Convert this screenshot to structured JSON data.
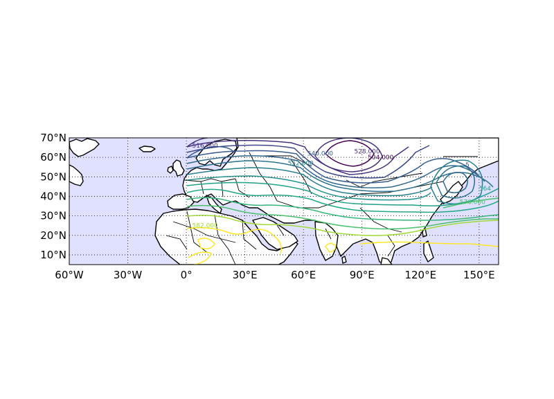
{
  "map": {
    "projection": "cylindrical",
    "lon_range": [
      -60,
      160
    ],
    "lat_range": [
      5,
      70
    ],
    "ocean_color": "#e0e0ff",
    "land_color": "#ffffff",
    "coastline_color": "#000000",
    "graticule": "dotted",
    "lat_ticks": [
      {
        "value": 10,
        "label": "10°N"
      },
      {
        "value": 20,
        "label": "20°N"
      },
      {
        "value": 30,
        "label": "30°N"
      },
      {
        "value": 40,
        "label": "40°N"
      },
      {
        "value": 50,
        "label": "50°N"
      },
      {
        "value": 60,
        "label": "60°N"
      },
      {
        "value": 70,
        "label": "70°N"
      }
    ],
    "lon_ticks": [
      {
        "value": -60,
        "label": "60°W"
      },
      {
        "value": -30,
        "label": "30°W"
      },
      {
        "value": 0,
        "label": "0°"
      },
      {
        "value": 30,
        "label": "30°E"
      },
      {
        "value": 60,
        "label": "60°E"
      },
      {
        "value": 90,
        "label": "90°E"
      },
      {
        "value": 120,
        "label": "120°E"
      },
      {
        "value": 150,
        "label": "150°E"
      }
    ],
    "contour_labels": [
      {
        "text": "516.000",
        "lon": 3,
        "lat": 65,
        "color": "#46327e"
      },
      {
        "text": "540.000",
        "lon": 62,
        "lat": 61,
        "color": "#365c8d"
      },
      {
        "text": "528.000",
        "lon": 86,
        "lat": 62,
        "color": "#46327e"
      },
      {
        "text": "504.000",
        "lon": 93,
        "lat": 59,
        "color": "#440154"
      },
      {
        "text": "552.000",
        "lon": 52,
        "lat": 56,
        "color": "#277f8e"
      },
      {
        "text": "576.000",
        "lon": 140,
        "lat": 36,
        "color": "#4ac16d"
      },
      {
        "text": "582.000",
        "lon": 3,
        "lat": 24,
        "color": "#a0da39"
      },
      {
        "text": "564",
        "lon": 150,
        "lat": 43,
        "color": "#1fa187"
      },
      {
        "text": "5",
        "lon": 143,
        "lat": 55,
        "color": "#365c8d"
      }
    ]
  }
}
